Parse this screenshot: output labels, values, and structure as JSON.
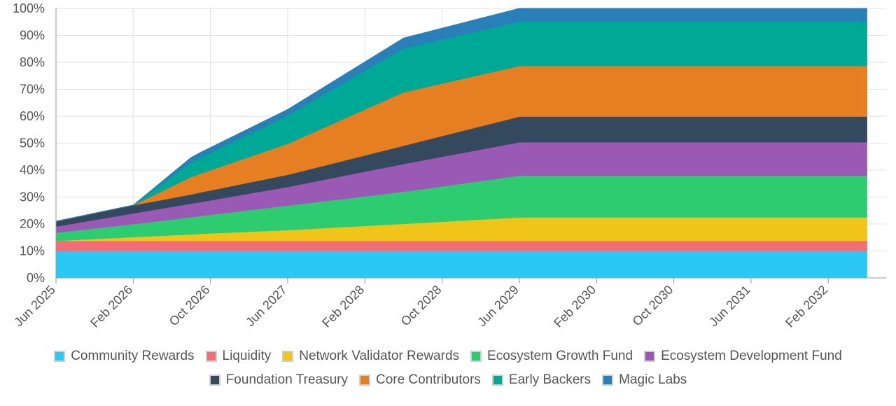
{
  "chart_data": {
    "type": "area",
    "stacked": true,
    "title": "",
    "xlabel": "",
    "ylabel": "",
    "ylim": [
      0,
      100
    ],
    "y_ticks": [
      "0%",
      "10%",
      "20%",
      "30%",
      "40%",
      "50%",
      "60%",
      "70%",
      "80%",
      "90%",
      "100%"
    ],
    "x_ticks": [
      "Jun 2025",
      "Feb 2026",
      "Oct 2026",
      "Jun 2027",
      "Feb 2028",
      "Oct 2028",
      "Jun 2029",
      "Feb 2030",
      "Oct 2030",
      "Jun 2031",
      "Feb 2032"
    ],
    "grid": true,
    "legend_position": "bottom",
    "x": [
      "2025-06",
      "2026-02",
      "2026-08",
      "2026-09",
      "2027-06",
      "2028-06",
      "2029-06",
      "2030-06",
      "2031-06",
      "2032-06"
    ],
    "series": [
      {
        "name": "Community Rewards",
        "color": "#29c8f5",
        "values": [
          10,
          10,
          10,
          10,
          10,
          10,
          10,
          10,
          10,
          10
        ]
      },
      {
        "name": "Liquidity",
        "color": "#f26d78",
        "values": [
          3.8,
          3.8,
          3.8,
          3.8,
          3.8,
          3.8,
          3.8,
          3.8,
          3.8,
          3.8
        ]
      },
      {
        "name": "Network Validator Rewards",
        "color": "#f0c419",
        "values": [
          0,
          1.4,
          2.4,
          2.6,
          4.0,
          6.3,
          8.7,
          8.7,
          8.7,
          8.7
        ]
      },
      {
        "name": "Ecosystem Growth Fund",
        "color": "#2ecc71",
        "values": [
          3.0,
          4.8,
          6.4,
          6.6,
          9.1,
          11.9,
          15.5,
          15.5,
          15.5,
          15.5
        ]
      },
      {
        "name": "Ecosystem Development Fund",
        "color": "#9b59b6",
        "values": [
          2.3,
          4.0,
          5.0,
          5.2,
          6.9,
          10.3,
          12.4,
          12.4,
          12.4,
          12.4
        ]
      },
      {
        "name": "Foundation Treasury",
        "color": "#34495e",
        "values": [
          1.9,
          3.0,
          3.4,
          3.6,
          4.5,
          6.8,
          9.5,
          9.5,
          9.5,
          9.5
        ]
      },
      {
        "name": "Core Contributors",
        "color": "#e67e22",
        "values": [
          0,
          0,
          6.5,
          7.0,
          11.5,
          19.8,
          18.8,
          18.8,
          18.8,
          18.8
        ]
      },
      {
        "name": "Early Backers",
        "color": "#00a896",
        "values": [
          0,
          0,
          5.5,
          6.0,
          10.5,
          16.3,
          16.5,
          16.5,
          16.5,
          16.5
        ]
      },
      {
        "name": "Magic Labs",
        "color": "#2980b9",
        "values": [
          0,
          0,
          1.7,
          1.8,
          2.2,
          3.8,
          4.8,
          4.8,
          4.8,
          4.8
        ]
      }
    ]
  }
}
